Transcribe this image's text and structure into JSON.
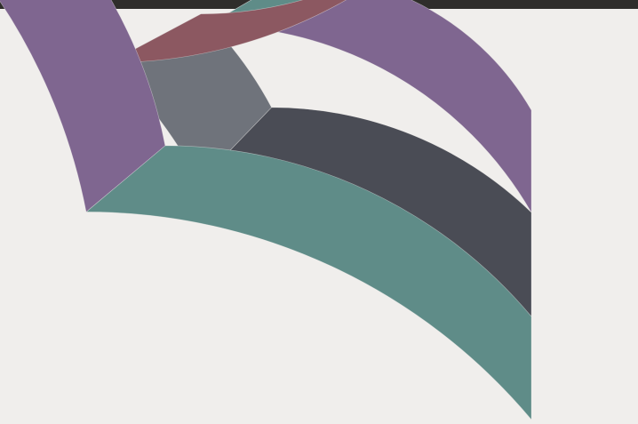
{
  "colors": {
    "background": "#f0eeec",
    "top_bar": "#2f2d2b",
    "teal": "#5f8c88",
    "slate": "#4a4c55",
    "purple": "#7f6690",
    "gray": "#6f737b",
    "red": "#8c5861"
  },
  "chart_data": {
    "type": "sunburst",
    "rings": [
      {
        "name": "inner",
        "segments": [
          {
            "color": "purple"
          },
          {
            "color": "teal"
          }
        ]
      },
      {
        "name": "middle",
        "segments": [
          {
            "color": "slate"
          },
          {
            "color": "gray"
          },
          {
            "color": "red"
          }
        ]
      },
      {
        "name": "outer",
        "segments": [
          {
            "color": "teal"
          },
          {
            "color": "purple"
          },
          {
            "color": "teal"
          }
        ]
      }
    ]
  }
}
